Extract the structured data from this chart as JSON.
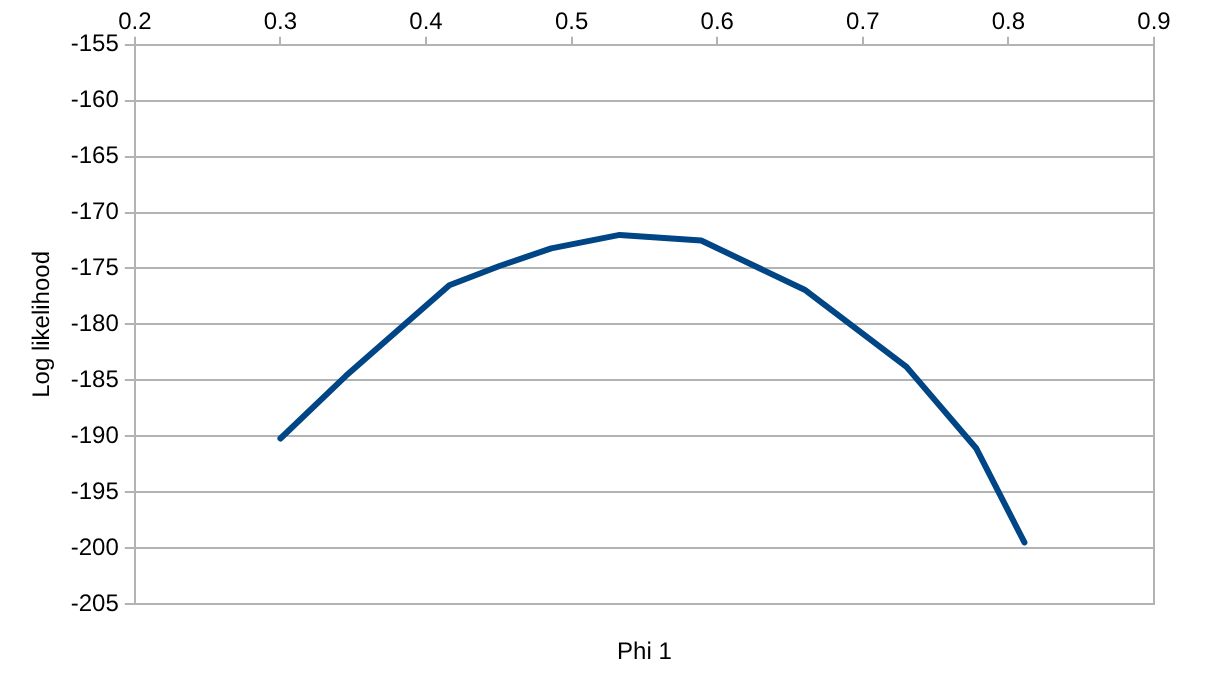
{
  "chart_data": {
    "type": "line",
    "xlabel": "Phi 1",
    "ylabel": "Log likelihood",
    "x": [
      0.3,
      0.345,
      0.416,
      0.45,
      0.486,
      0.533,
      0.589,
      0.66,
      0.73,
      0.778,
      0.811
    ],
    "series": [
      {
        "color": "#004586",
        "values": [
          -190.2,
          -184.6,
          -176.5,
          -174.8,
          -173.2,
          -172.0,
          -172.5,
          -176.9,
          -183.8,
          -191.1,
          -199.5
        ]
      }
    ],
    "xlim": [
      0.2,
      0.9
    ],
    "xticks": [
      0.2,
      0.3,
      0.4,
      0.5,
      0.6,
      0.7,
      0.8,
      0.9
    ],
    "ylim": [
      -205,
      -155
    ],
    "yticks": [
      -205,
      -200,
      -195,
      -190,
      -185,
      -180,
      -175,
      -170,
      -165,
      -160,
      -155
    ],
    "grid": "y",
    "legend": false,
    "marker": "none",
    "line_style": "solid"
  }
}
